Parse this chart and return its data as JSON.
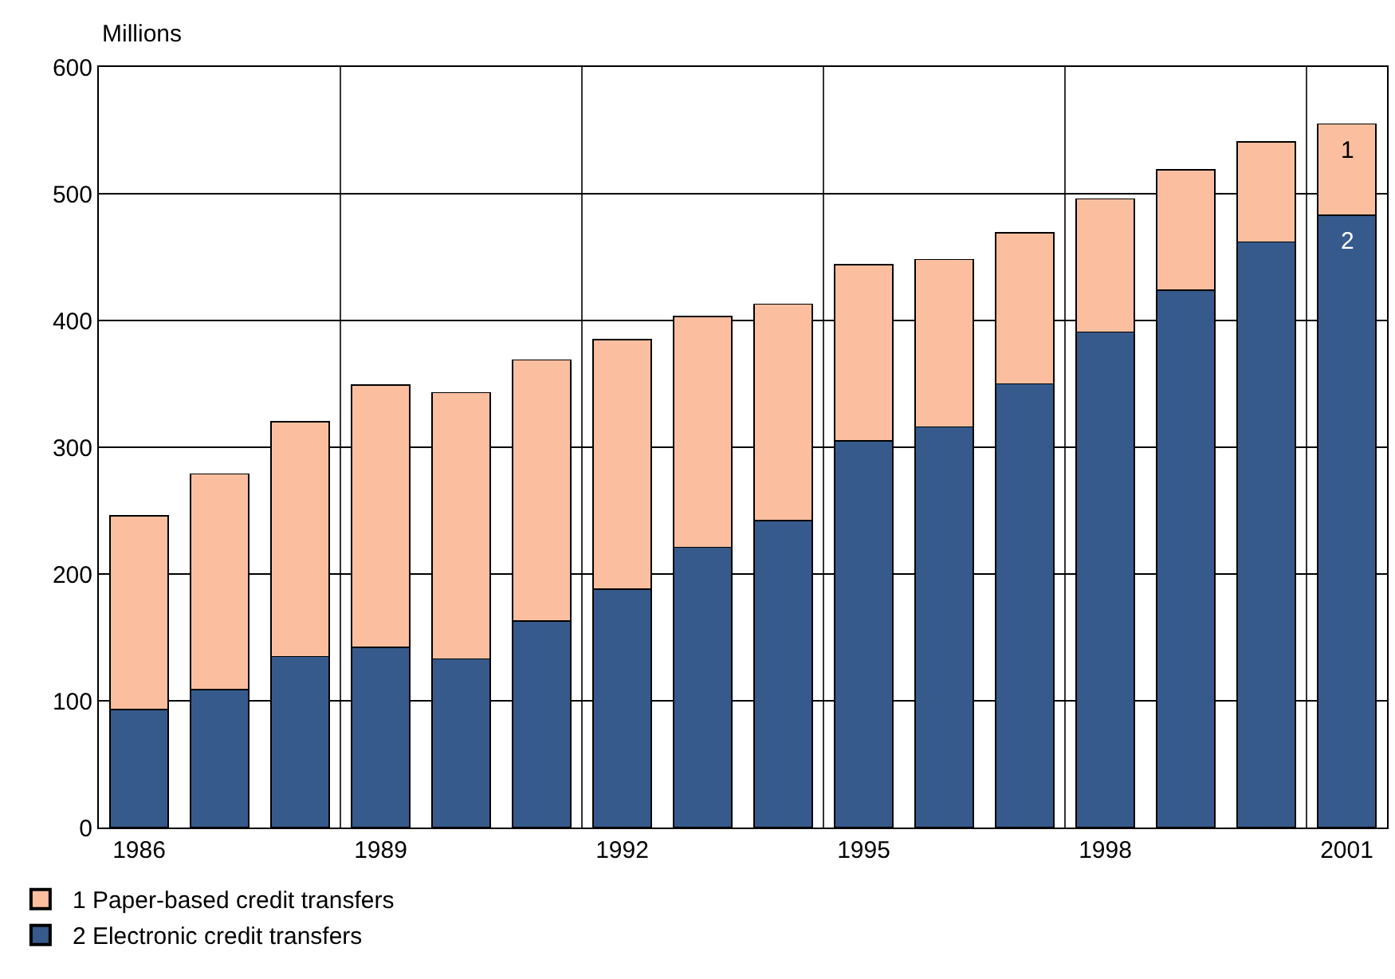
{
  "chart_data": {
    "type": "bar",
    "stacked": true,
    "ylabel": "Millions",
    "categories": [
      "1986",
      null,
      null,
      "1989",
      null,
      null,
      "1992",
      null,
      null,
      "1995",
      null,
      null,
      "1998",
      null,
      null,
      "2001"
    ],
    "series": [
      {
        "name": "2 Electronic credit transfers",
        "color": "#365a8c",
        "values": [
          93,
          109,
          135,
          142,
          133,
          163,
          188,
          221,
          242,
          305,
          316,
          350,
          391,
          424,
          462,
          483
        ]
      },
      {
        "name": "1 Paper-based credit transfers",
        "color": "#fbbfa0",
        "values": [
          153,
          170,
          185,
          207,
          210,
          206,
          197,
          182,
          171,
          139,
          132,
          119,
          105,
          95,
          79,
          72
        ]
      }
    ],
    "annotations": [
      "1",
      "2"
    ],
    "ylim": [
      0,
      600
    ],
    "yticks": [
      0,
      100,
      200,
      300,
      400,
      500,
      600
    ],
    "grid": true,
    "legend": "bottom left"
  }
}
